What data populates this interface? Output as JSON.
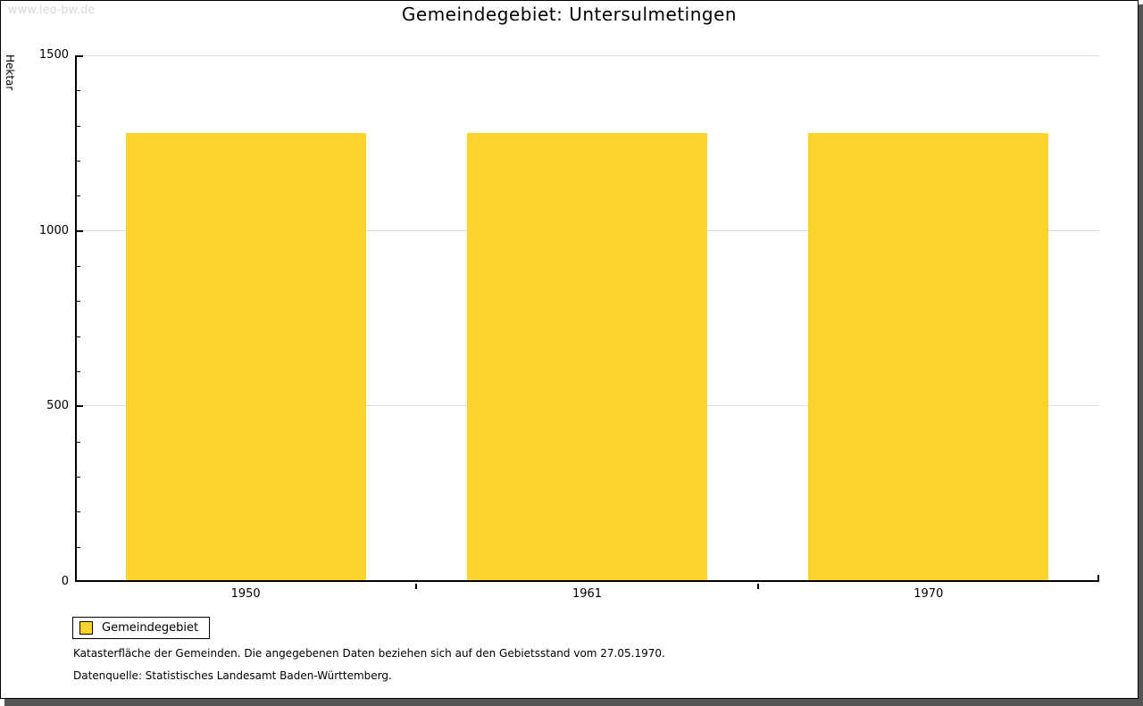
{
  "watermark": "www.leo-bw.de",
  "title": "Gemeindegebiet: Untersulmetingen",
  "chart_data": {
    "type": "bar",
    "title": "Gemeindegebiet: Untersulmetingen",
    "ylabel": "Hektar",
    "xlabel": "",
    "categories": [
      "1950",
      "1961",
      "1970"
    ],
    "series": [
      {
        "name": "Gemeindegebiet",
        "values": [
          1278,
          1278,
          1278
        ]
      }
    ],
    "unit": "Hektar",
    "ylim": [
      0,
      1500
    ],
    "ytick_major": 500,
    "ytick_minor": 100,
    "ytick_labels": [
      "0",
      "500",
      "1000",
      "1500"
    ],
    "grid": true,
    "legend_position": "bottom-left",
    "bar_color": "#fdd32d"
  },
  "legend": {
    "label": "Gemeindegebiet",
    "swatch_color": "#fdd32d"
  },
  "footnotes": [
    "Katasterfläche der Gemeinden. Die angegebenen Daten beziehen sich auf den Gebietsstand vom 27.05.1970.",
    "Datenquelle: Statistisches Landesamt Baden-Württemberg."
  ],
  "colors": {
    "bar": "#fdd32d",
    "grid": "#dcdcdc",
    "axis": "#000000",
    "watermark": "#d9d9d9",
    "frame_shadow": "#545454"
  }
}
